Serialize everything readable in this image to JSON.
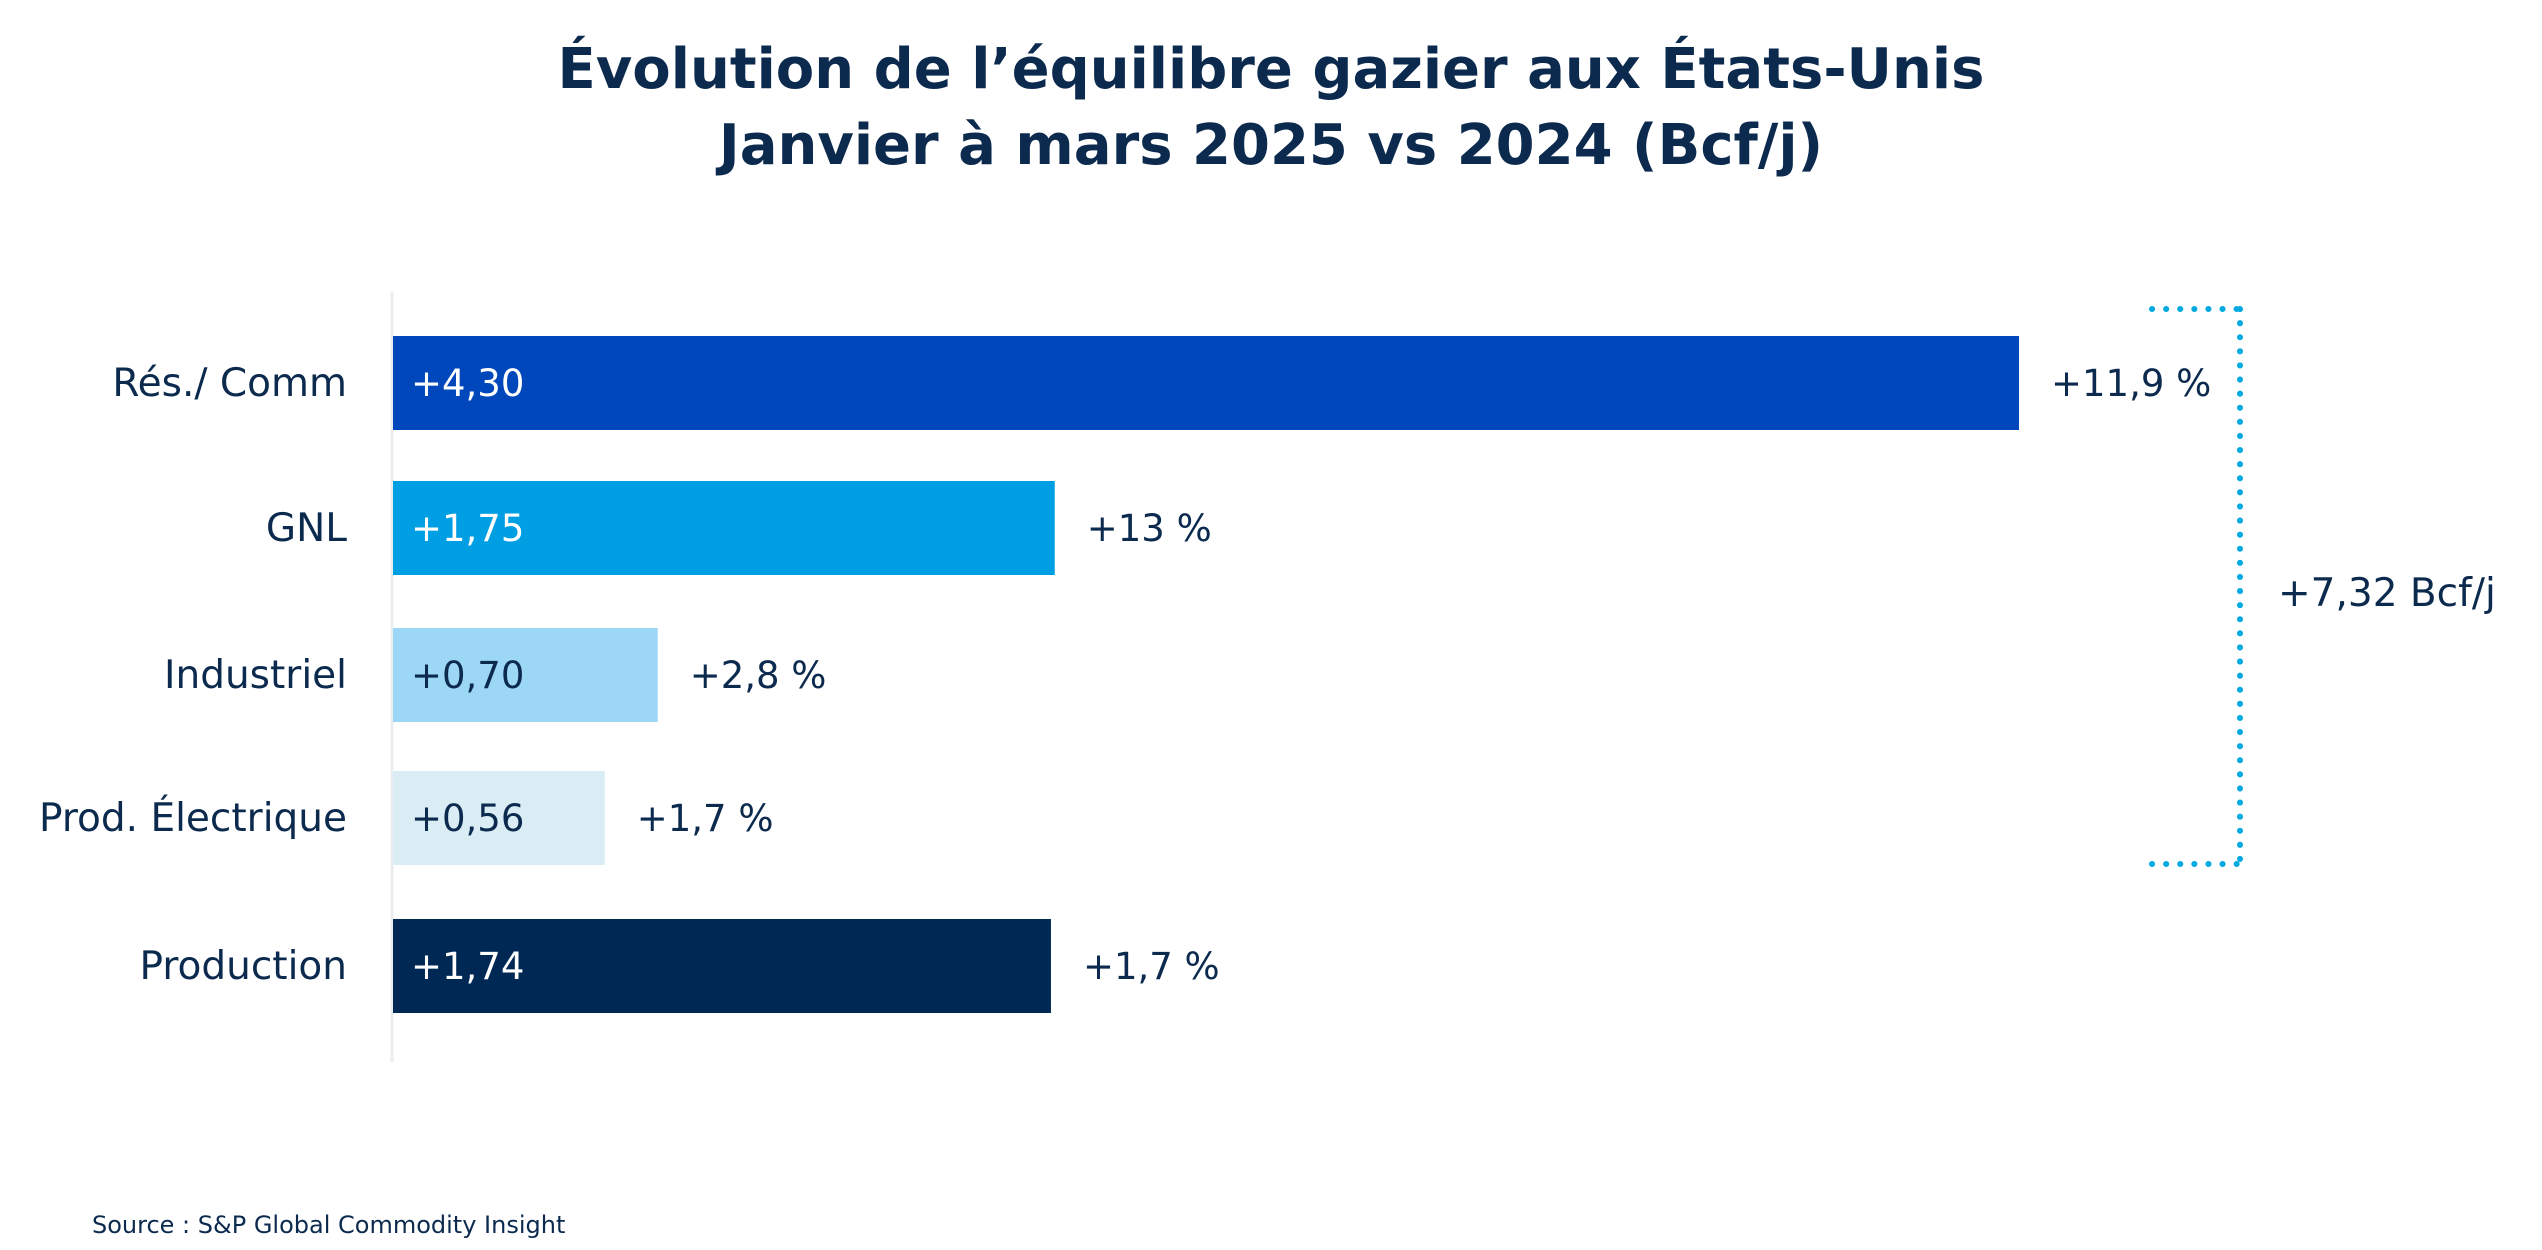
{
  "chart_data": {
    "type": "bar",
    "orientation": "horizontal",
    "title": "Évolution de l’équilibre gazier aux États-Unis",
    "subtitle": "Janvier à mars 2025 vs 2024 (Bcf/j)",
    "categories": [
      "Rés./ Comm",
      "GNL",
      "Industriel",
      "Prod. Électrique",
      "Production"
    ],
    "values": [
      4.3,
      1.75,
      0.7,
      0.56,
      1.74
    ],
    "value_labels": [
      "+4,30",
      "+1,75",
      "+0,70",
      "+0,56",
      "+1,74"
    ],
    "pct_labels": [
      "+11,9 %",
      "+13 %",
      "+2,8 %",
      "+1,7 %",
      "+1,7 %"
    ],
    "colors": [
      "#0047bb",
      "#009fe3",
      "#9cd7f5",
      "#daedf5",
      "#002855"
    ],
    "value_label_colors": [
      "#ffffff",
      "#ffffff",
      "#0b2a4e",
      "#0b2a4e",
      "#ffffff"
    ],
    "bracket": {
      "label": "+7,32 Bcf/j",
      "spans_categories": [
        "Rés./ Comm",
        "GNL",
        "Industriel",
        "Prod. Électrique"
      ],
      "color": "#00a9e0"
    },
    "xlim": [
      0,
      4.3
    ],
    "grid": false,
    "legend": "none",
    "source": "Source : S&P Global Commodity Insight"
  }
}
